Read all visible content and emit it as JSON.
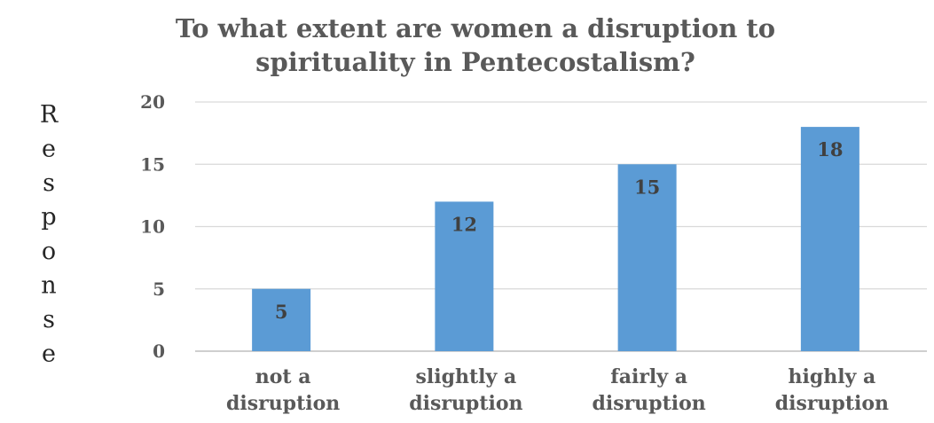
{
  "chart_data": {
    "type": "bar",
    "title": [
      "To what extent are women a disruption to",
      "spirituality in Pentecostalism?"
    ],
    "ylabel": "Response",
    "xlabel": "",
    "categories": [
      [
        "not a",
        "disruption"
      ],
      [
        "slightly a",
        "disruption"
      ],
      [
        "fairly a",
        "disruption"
      ],
      [
        "highly a",
        "disruption"
      ]
    ],
    "values": [
      5,
      12,
      15,
      18
    ],
    "ylim": [
      0,
      20
    ],
    "yticks": [
      0,
      5,
      10,
      15,
      20
    ],
    "grid": true,
    "legend": "none",
    "bar_color": "#5b9bd5"
  }
}
